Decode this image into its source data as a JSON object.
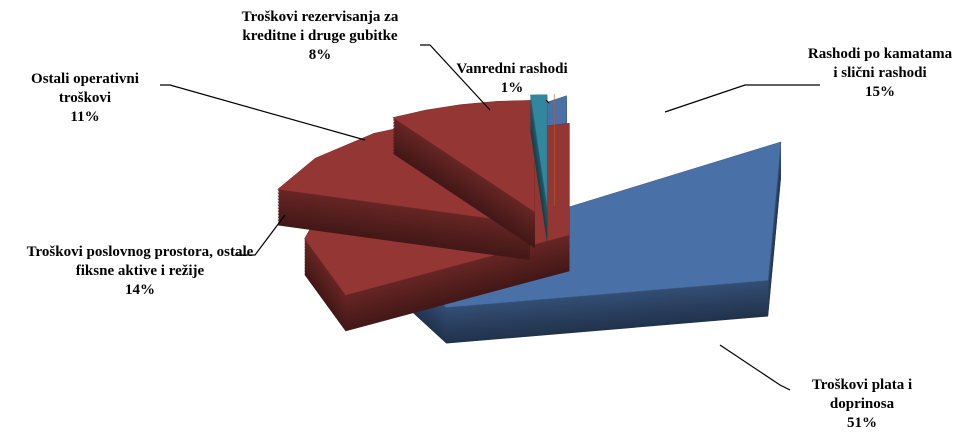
{
  "chart_data": {
    "type": "pie",
    "categories": [
      "Rashodi po kamatama i slični rashodi",
      "Troškovi plata i doprinosa",
      "Troškovi poslovnog prostora, ostale fiksne aktive i režije",
      "Ostali operativni troškovi",
      "Troškovi rezervisanja za kreditne i druge gubitke",
      "Vanredni rashodi"
    ],
    "values": [
      15,
      51,
      14,
      11,
      8,
      1
    ],
    "value_labels": [
      "15%",
      "51%",
      "14%",
      "11%",
      "8%",
      "1%"
    ],
    "colors": [
      "#4a70a8",
      "#943634",
      "#943634",
      "#943634",
      "#31879e",
      "#e8782a"
    ]
  }
}
